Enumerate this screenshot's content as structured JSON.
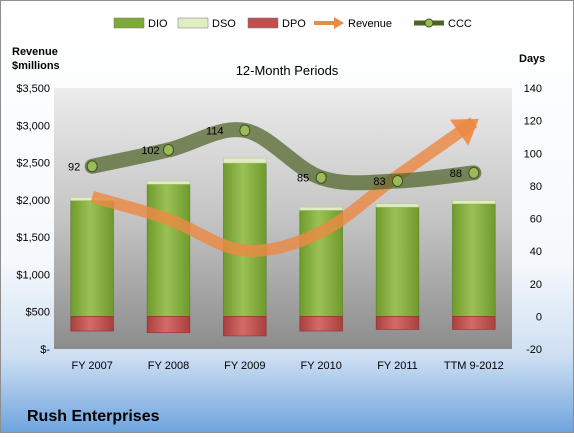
{
  "chart_data": {
    "type": "bar",
    "title": "12-Month Periods",
    "company": "Rush Enterprises",
    "left_axis_label_line1": "Revenue",
    "left_axis_label_line2": "$millions",
    "right_axis_label": "Days",
    "categories": [
      "FY 2007",
      "FY 2008",
      "FY 2009",
      "FY 2010",
      "FY 2011",
      "TTM 9-2012"
    ],
    "left_ticks": [
      "$-",
      "$500",
      "$1,000",
      "$1,500",
      "$2,000",
      "$2,500",
      "$3,000",
      "$3,500"
    ],
    "right_ticks": [
      "-20",
      "0",
      "20",
      "40",
      "60",
      "80",
      "100",
      "120",
      "140"
    ],
    "left_ylim": [
      0,
      3500
    ],
    "right_ylim": [
      -20,
      140
    ],
    "legend_position": "top",
    "grid": false,
    "series": [
      {
        "name": "DIO",
        "axis": "right",
        "kind": "stacked-bar",
        "color": "#7fa83a",
        "values": [
          71,
          81,
          94,
          65,
          67,
          69
        ]
      },
      {
        "name": "DSO",
        "axis": "right",
        "kind": "stacked-bar",
        "color": "#e1edc2",
        "values": [
          2,
          2,
          3,
          2,
          2,
          2
        ]
      },
      {
        "name": "DPO",
        "axis": "right",
        "kind": "negative-bar",
        "color": "#c0504d",
        "values": [
          -9,
          -10,
          -12,
          -9,
          -8,
          -8
        ]
      },
      {
        "name": "Revenue",
        "axis": "left",
        "kind": "line",
        "color": "#ec8a44",
        "values": [
          2040,
          1740,
          1320,
          1570,
          2320,
          3040
        ]
      },
      {
        "name": "CCC",
        "axis": "right",
        "kind": "line",
        "color": "#4f6228",
        "values": [
          92,
          102,
          114,
          85,
          83,
          88
        ]
      }
    ],
    "ccc_labels": [
      "92",
      "102",
      "114",
      "85",
      "83",
      "88"
    ]
  }
}
